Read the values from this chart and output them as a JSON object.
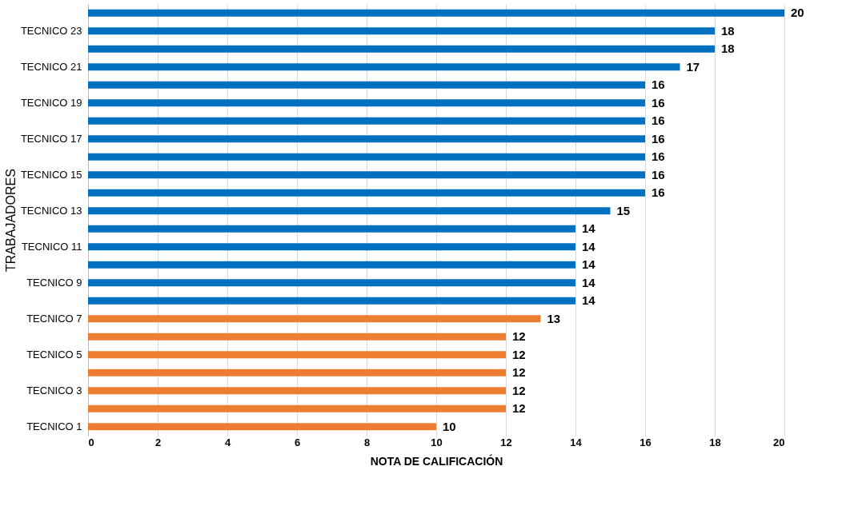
{
  "chart_data": {
    "type": "bar",
    "orientation": "horizontal",
    "xlabel": "NOTA DE CALIFICACIÓN",
    "ylabel": "TRABAJADORES",
    "categories": [
      null,
      "TECNICO 23",
      null,
      "TECNICO 21",
      null,
      "TECNICO 19",
      null,
      "TECNICO 17",
      null,
      "TECNICO 15",
      null,
      "TECNICO 13",
      null,
      "TECNICO 11",
      null,
      "TECNICO 9",
      null,
      "TECNICO 7",
      null,
      "TECNICO 5",
      null,
      "TECNICO 3",
      null,
      "TECNICO 1"
    ],
    "values": [
      20,
      18,
      18,
      17,
      16,
      16,
      16,
      16,
      16,
      16,
      16,
      15,
      14,
      14,
      14,
      14,
      14,
      13,
      12,
      12,
      12,
      12,
      12,
      10
    ],
    "colors": [
      "#0070c0",
      "#0070c0",
      "#0070c0",
      "#0070c0",
      "#0070c0",
      "#0070c0",
      "#0070c0",
      "#0070c0",
      "#0070c0",
      "#0070c0",
      "#0070c0",
      "#0070c0",
      "#0070c0",
      "#0070c0",
      "#0070c0",
      "#0070c0",
      "#0070c0",
      "#ed7d31",
      "#ed7d31",
      "#ed7d31",
      "#ed7d31",
      "#ed7d31",
      "#ed7d31",
      "#ed7d31"
    ],
    "xlim": [
      0,
      20
    ],
    "xticks": [
      0,
      2,
      4,
      6,
      8,
      10,
      12,
      14,
      16,
      18,
      20
    ],
    "grid": "x",
    "data_labels": true
  }
}
